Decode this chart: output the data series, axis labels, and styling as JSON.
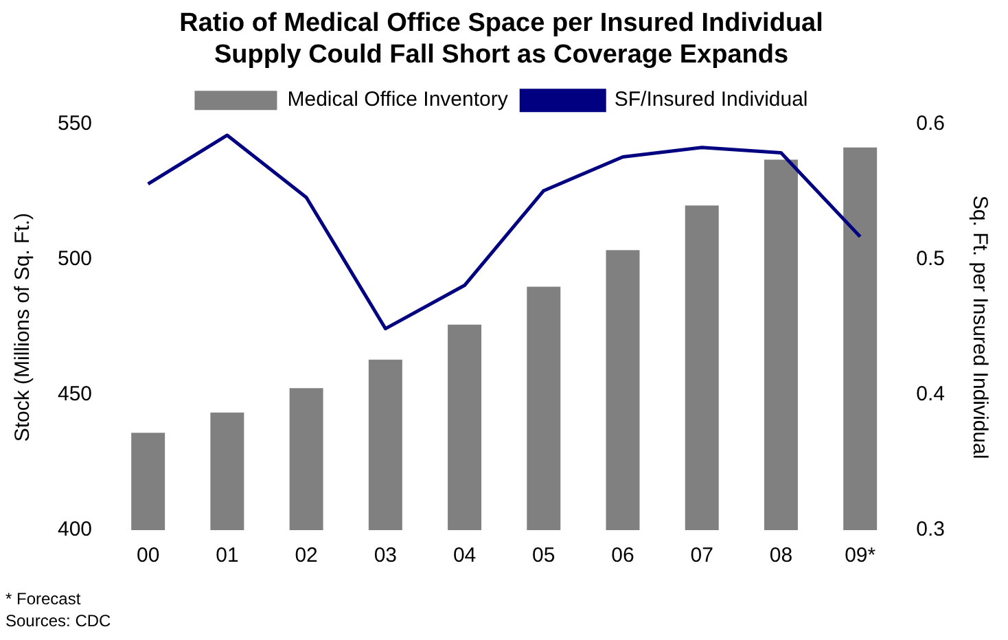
{
  "chart_data": {
    "type": "bar",
    "title": [
      "Ratio of Medical Office Space per Insured Individual",
      "Supply Could Fall Short as Coverage Expands"
    ],
    "categories": [
      "00",
      "01",
      "02",
      "03",
      "04",
      "05",
      "06",
      "07",
      "08",
      "09*"
    ],
    "series": [
      {
        "name": "Medical Office Inventory",
        "color": "#808080",
        "values": [
          436,
          443.5,
          452.5,
          463,
          476,
          490,
          503.5,
          520,
          537,
          541.5
        ]
      },
      {
        "name": "SF/Insured Individual",
        "type": "line",
        "axis": "y2",
        "color": "#000080",
        "values": [
          0.556,
          0.592,
          0.546,
          0.449,
          0.481,
          0.551,
          0.576,
          0.583,
          0.579,
          0.517
        ]
      }
    ],
    "ylabel": "Stock (Millions of Sq. Ft.)",
    "y2label": "Sq. Ft. per Insured Individual",
    "ylim": [
      400,
      550
    ],
    "yticks": [
      400,
      450,
      500,
      550
    ],
    "y2lim": [
      0.3,
      0.6
    ],
    "y2ticks": [
      0.3,
      0.4,
      0.5,
      0.6
    ],
    "legend": "top",
    "grid": false,
    "marker": "none",
    "annotations": [
      "* Forecast",
      "Sources: CDC"
    ]
  }
}
